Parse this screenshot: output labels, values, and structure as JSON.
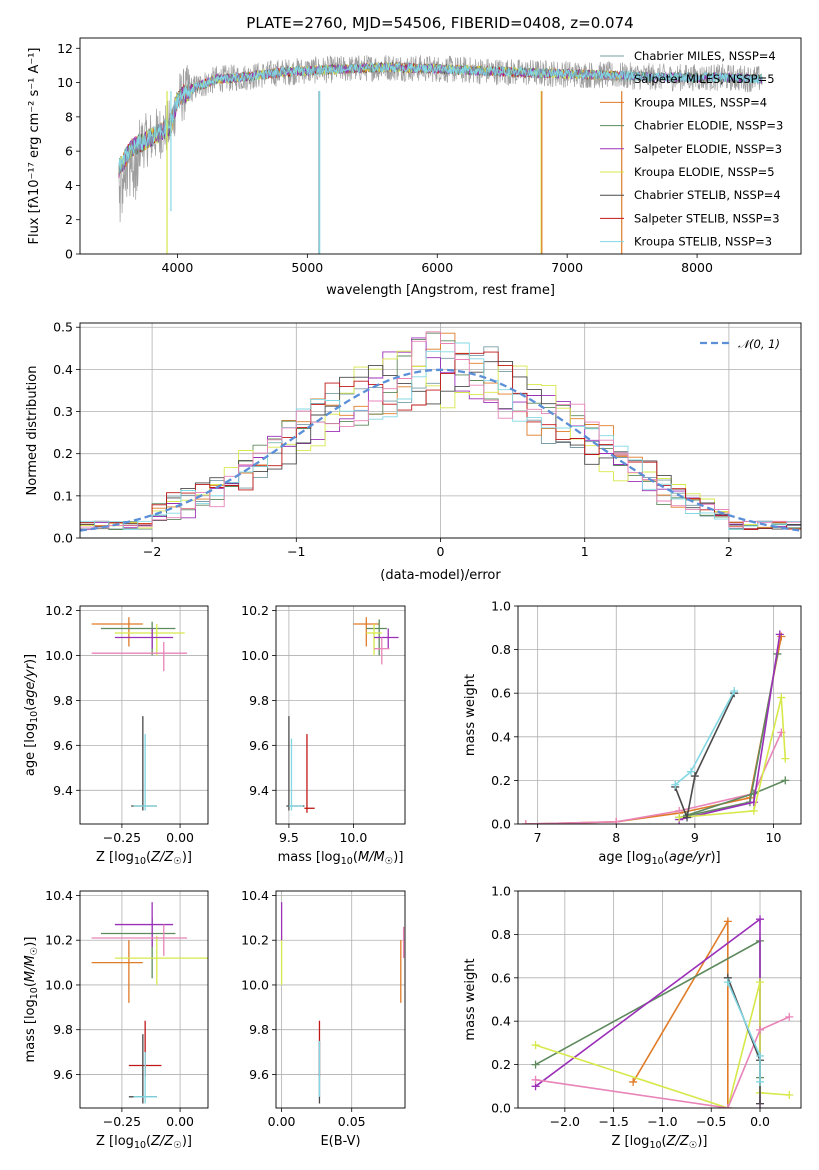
{
  "figure_title": "PLATE=2760, MJD=54506, FIBERID=0408, z=0.074",
  "colors": {
    "chabrier_miles": "#7a9ca6",
    "salpeter_miles": "#9e9e9e",
    "kroupa_miles": "#e07b28",
    "chabrier_elodie": "#5e8a5e",
    "salpeter_elodie": "#9b30b8",
    "kroupa_elodie": "#d7e84a",
    "chabrier_stelib": "#4a4a4a",
    "salpeter_stelib": "#c01818",
    "kroupa_stelib": "#82d8e4",
    "pink": "#e884b8",
    "gauss": "#5b8fd8"
  },
  "chart_data": [
    {
      "id": "spectrum",
      "type": "line",
      "xlabel": "wavelength [Angstrom, rest frame]",
      "ylabel": "Flux [fλ10⁻¹⁷ erg cm⁻² s⁻¹ A⁻¹]",
      "xlim": [
        3250,
        8800
      ],
      "ylim": [
        0,
        12.6
      ],
      "xticks": [
        4000,
        5000,
        6000,
        7000,
        8000
      ],
      "yticks": [
        0,
        2,
        4,
        6,
        8,
        10,
        12
      ],
      "grid": false,
      "legend_position": "top-right",
      "legend": [
        {
          "label": "Chabrier MILES, NSSP=4",
          "color_key": "chabrier_miles"
        },
        {
          "label": "Salpeter MILES, NSSP=5",
          "color_key": "salpeter_miles"
        },
        {
          "label": "Kroupa MILES, NSSP=4",
          "color_key": "kroupa_miles"
        },
        {
          "label": "Chabrier ELODIE, NSSP=3",
          "color_key": "chabrier_elodie"
        },
        {
          "label": "Salpeter ELODIE, NSSP=3",
          "color_key": "salpeter_elodie"
        },
        {
          "label": "Kroupa ELODIE, NSSP=5",
          "color_key": "kroupa_elodie"
        },
        {
          "label": "Chabrier STELIB, NSSP=4",
          "color_key": "chabrier_stelib"
        },
        {
          "label": "Salpeter STELIB, NSSP=3",
          "color_key": "salpeter_stelib"
        },
        {
          "label": "Kroupa STELIB, NSSP=3",
          "color_key": "kroupa_stelib"
        }
      ],
      "continuum": [
        [
          3550,
          5.0
        ],
        [
          3650,
          6.2
        ],
        [
          3800,
          6.8
        ],
        [
          3950,
          7.5
        ],
        [
          4000,
          9.0
        ],
        [
          4100,
          9.6
        ],
        [
          4300,
          10.2
        ],
        [
          4500,
          10.3
        ],
        [
          4800,
          10.6
        ],
        [
          5000,
          10.7
        ],
        [
          5300,
          10.8
        ],
        [
          5600,
          10.9
        ],
        [
          6000,
          10.8
        ],
        [
          6300,
          10.7
        ],
        [
          6600,
          10.6
        ],
        [
          7000,
          10.5
        ],
        [
          7400,
          10.4
        ],
        [
          7800,
          10.3
        ],
        [
          8200,
          10.3
        ],
        [
          8500,
          10.2
        ]
      ]
    },
    {
      "id": "residuals",
      "type": "histogram",
      "xlabel": "(data-model)/error",
      "ylabel": "Normed distribution",
      "xlim": [
        -2.5,
        2.5
      ],
      "ylim": [
        0,
        0.51
      ],
      "xticks": [
        -2,
        -1,
        0,
        1,
        2
      ],
      "yticks": [
        0.0,
        0.1,
        0.2,
        0.3,
        0.4,
        0.5
      ],
      "grid": true,
      "legend_position": "top-right",
      "gauss_label": "𝒩(0, 1)",
      "bin_width": 0.1
    },
    {
      "id": "age_vs_Z",
      "type": "errorbar",
      "xlabel": "Z [log10(Z/Z☉)]",
      "ylabel": "age [log10(age/yr)]",
      "xlim": [
        -0.43,
        0.12
      ],
      "ylim": [
        9.25,
        10.22
      ],
      "xticks": [
        -0.25,
        0.0
      ],
      "yticks": [
        9.4,
        9.6,
        9.8,
        10.0,
        10.2
      ],
      "grid": true,
      "points": [
        {
          "x": -0.22,
          "y": 10.14,
          "xerr": [
            0.16,
            0.06
          ],
          "yerr": [
            0.1,
            0.03
          ],
          "color_key": "kroupa_miles"
        },
        {
          "x": -0.12,
          "y": 10.12,
          "xerr": [
            0.22,
            0.1
          ],
          "yerr": [
            0.12,
            0.03
          ],
          "color_key": "chabrier_elodie"
        },
        {
          "x": -0.1,
          "y": 10.1,
          "xerr": [
            0.18,
            0.12
          ],
          "yerr": [
            0.1,
            0.04
          ],
          "color_key": "kroupa_elodie"
        },
        {
          "x": -0.12,
          "y": 10.08,
          "xerr": [
            0.16,
            0.09
          ],
          "yerr": [
            0.05,
            0.04
          ],
          "color_key": "salpeter_elodie"
        },
        {
          "x": -0.07,
          "y": 10.01,
          "xerr": [
            0.31,
            0.1
          ],
          "yerr": [
            0.08,
            0.05
          ],
          "color_key": "pink"
        },
        {
          "x": -0.16,
          "y": 9.33,
          "xerr": [
            0.05,
            0.06
          ],
          "yerr": [
            0.02,
            0.4
          ],
          "color_key": "chabrier_stelib"
        },
        {
          "x": -0.15,
          "y": 9.33,
          "xerr": [
            0.05,
            0.05
          ],
          "yerr": [
            0.02,
            0.32
          ],
          "color_key": "kroupa_stelib"
        }
      ]
    },
    {
      "id": "age_vs_mass",
      "type": "errorbar",
      "xlabel": "mass [log10(M/M☉)]",
      "ylabel": "",
      "xlim": [
        9.4,
        10.4
      ],
      "ylim": [
        9.25,
        10.22
      ],
      "xticks": [
        9.5,
        10.0
      ],
      "yticks": [
        9.4,
        9.6,
        9.8,
        10.0,
        10.2
      ],
      "grid": true,
      "points": [
        {
          "x": 10.1,
          "y": 10.14,
          "xerr": [
            0.1,
            0.1
          ],
          "yerr": [
            0.1,
            0.03
          ],
          "color_key": "kroupa_miles"
        },
        {
          "x": 10.2,
          "y": 10.12,
          "xerr": [
            0.1,
            0.06
          ],
          "yerr": [
            0.12,
            0.04
          ],
          "color_key": "chabrier_elodie"
        },
        {
          "x": 10.16,
          "y": 10.1,
          "xerr": [
            0.06,
            0.06
          ],
          "yerr": [
            0.1,
            0.04
          ],
          "color_key": "kroupa_elodie"
        },
        {
          "x": 10.27,
          "y": 10.08,
          "xerr": [
            0.11,
            0.08
          ],
          "yerr": [
            0.05,
            0.04
          ],
          "color_key": "salpeter_elodie"
        },
        {
          "x": 10.22,
          "y": 10.03,
          "xerr": [
            0.06,
            0.06
          ],
          "yerr": [
            0.07,
            0.05
          ],
          "color_key": "pink"
        },
        {
          "x": 9.5,
          "y": 9.33,
          "xerr": [
            0.02,
            0.12
          ],
          "yerr": [
            0.02,
            0.4
          ],
          "color_key": "chabrier_stelib"
        },
        {
          "x": 9.64,
          "y": 9.32,
          "xerr": [
            0.02,
            0.06
          ],
          "yerr": [
            0.02,
            0.33
          ],
          "color_key": "salpeter_stelib"
        },
        {
          "x": 9.52,
          "y": 9.33,
          "xerr": [
            0.02,
            0.09
          ],
          "yerr": [
            0.02,
            0.3
          ],
          "color_key": "kroupa_stelib"
        }
      ]
    },
    {
      "id": "weight_vs_age",
      "type": "line",
      "xlabel": "age [log10(age/yr)]",
      "ylabel": "mass weight",
      "xlim": [
        6.75,
        10.35
      ],
      "ylim": [
        0,
        1.0
      ],
      "xticks": [
        7,
        8,
        9,
        10
      ],
      "yticks": [
        0.0,
        0.2,
        0.4,
        0.6,
        0.8,
        1.0
      ],
      "grid": true,
      "series": [
        {
          "color_key": "kroupa_miles",
          "x": [
            6.85,
            8.0,
            8.8,
            9.7,
            10.1
          ],
          "y": [
            0.0,
            0.01,
            0.05,
            0.12,
            0.86
          ]
        },
        {
          "color_key": "pink",
          "x": [
            6.85,
            8.0,
            8.8,
            9.75,
            10.1
          ],
          "y": [
            0.0,
            0.01,
            0.06,
            0.14,
            0.42
          ]
        },
        {
          "color_key": "chabrier_elodie",
          "x": [
            8.9,
            9.75,
            10.15
          ],
          "y": [
            0.04,
            0.14,
            0.2
          ]
        },
        {
          "color_key": "chabrier_elodie",
          "x": [
            8.8,
            9.7,
            10.05
          ],
          "y": [
            0.03,
            0.1,
            0.78
          ]
        },
        {
          "color_key": "salpeter_elodie",
          "x": [
            8.8,
            9.75,
            10.08
          ],
          "y": [
            0.02,
            0.1,
            0.87
          ]
        },
        {
          "color_key": "kroupa_elodie",
          "x": [
            8.8,
            9.75,
            10.1,
            10.15
          ],
          "y": [
            0.03,
            0.06,
            0.58,
            0.3
          ]
        },
        {
          "color_key": "chabrier_stelib",
          "x": [
            8.75,
            8.9,
            9.0,
            9.5
          ],
          "y": [
            0.17,
            0.03,
            0.22,
            0.6
          ]
        },
        {
          "color_key": "kroupa_stelib",
          "x": [
            8.75,
            8.95,
            9.5
          ],
          "y": [
            0.18,
            0.24,
            0.61
          ]
        }
      ]
    },
    {
      "id": "mass_vs_Z",
      "type": "errorbar",
      "xlabel": "Z [log10(Z/Z☉)]",
      "ylabel": "mass [log10(M/M☉)]",
      "xlim": [
        -0.43,
        0.12
      ],
      "ylim": [
        9.45,
        10.42
      ],
      "xticks": [
        -0.25,
        0.0
      ],
      "yticks": [
        9.6,
        9.8,
        10.0,
        10.2,
        10.4
      ],
      "grid": true,
      "points": [
        {
          "x": -0.22,
          "y": 10.1,
          "xerr": [
            0.16,
            0.06
          ],
          "yerr": [
            0.18,
            0.1
          ],
          "color_key": "kroupa_miles"
        },
        {
          "x": -0.12,
          "y": 10.23,
          "xerr": [
            0.22,
            0.1
          ],
          "yerr": [
            0.2,
            0.07
          ],
          "color_key": "chabrier_elodie"
        },
        {
          "x": -0.1,
          "y": 10.12,
          "xerr": [
            0.18,
            0.22
          ],
          "yerr": [
            0.12,
            0.1
          ],
          "color_key": "kroupa_elodie"
        },
        {
          "x": -0.12,
          "y": 10.27,
          "xerr": [
            0.16,
            0.09
          ],
          "yerr": [
            0.1,
            0.1
          ],
          "color_key": "salpeter_elodie"
        },
        {
          "x": -0.07,
          "y": 10.21,
          "xerr": [
            0.31,
            0.1
          ],
          "yerr": [
            0.08,
            0.06
          ],
          "color_key": "pink"
        },
        {
          "x": -0.15,
          "y": 9.64,
          "xerr": [
            0.07,
            0.07
          ],
          "yerr": [
            0.05,
            0.2
          ],
          "color_key": "salpeter_stelib"
        },
        {
          "x": -0.16,
          "y": 9.5,
          "xerr": [
            0.06,
            0.06
          ],
          "yerr": [
            0.03,
            0.28
          ],
          "color_key": "chabrier_stelib"
        },
        {
          "x": -0.15,
          "y": 9.5,
          "xerr": [
            0.05,
            0.05
          ],
          "yerr": [
            0.03,
            0.2
          ],
          "color_key": "kroupa_stelib"
        }
      ]
    },
    {
      "id": "mass_vs_ebv",
      "type": "errorbar",
      "xlabel": "E(B-V)",
      "ylabel": "",
      "xlim": [
        -0.004,
        0.088
      ],
      "ylim": [
        9.45,
        10.42
      ],
      "xticks": [
        0.0,
        0.05
      ],
      "yticks": [
        9.6,
        9.8,
        10.0,
        10.2,
        10.4
      ],
      "grid": true,
      "points": [
        {
          "x": 0.0,
          "y": 10.1,
          "xerr": [
            0,
            0
          ],
          "yerr": [
            0.1,
            0.12
          ],
          "color_key": "kroupa_elodie"
        },
        {
          "x": 0.0,
          "y": 10.27,
          "xerr": [
            0,
            0
          ],
          "yerr": [
            0.07,
            0.1
          ],
          "color_key": "salpeter_elodie"
        },
        {
          "x": 0.085,
          "y": 10.1,
          "xerr": [
            0,
            0
          ],
          "yerr": [
            0.18,
            0.1
          ],
          "color_key": "kroupa_miles"
        },
        {
          "x": 0.087,
          "y": 10.2,
          "xerr": [
            0,
            0
          ],
          "yerr": [
            0.08,
            0.06
          ],
          "color_key": "pink"
        },
        {
          "x": 0.027,
          "y": 9.64,
          "xerr": [
            0,
            0
          ],
          "yerr": [
            0.05,
            0.2
          ],
          "color_key": "salpeter_stelib"
        },
        {
          "x": 0.027,
          "y": 9.55,
          "xerr": [
            0,
            0
          ],
          "yerr": [
            0.08,
            0.2
          ],
          "color_key": "chabrier_stelib"
        },
        {
          "x": 0.027,
          "y": 9.55,
          "xerr": [
            0,
            0
          ],
          "yerr": [
            0.05,
            0.2
          ],
          "color_key": "kroupa_stelib"
        }
      ]
    },
    {
      "id": "weight_vs_Z",
      "type": "line",
      "xlabel": "Z [log10(Z/Z☉)]",
      "ylabel": "mass weight",
      "xlim": [
        -2.48,
        0.42
      ],
      "ylim": [
        0,
        1.0
      ],
      "xticks": [
        -2.0,
        -1.5,
        -1.0,
        -0.5,
        0.0
      ],
      "yticks": [
        0.0,
        0.2,
        0.4,
        0.6,
        0.8,
        1.0
      ],
      "grid": true,
      "series": [
        {
          "color_key": "kroupa_miles",
          "x": [
            -1.3,
            -0.33,
            -0.33
          ],
          "y": [
            0.12,
            0.86,
            0.0
          ]
        },
        {
          "color_key": "chabrier_elodie",
          "x": [
            -2.3,
            0.0,
            0.0
          ],
          "y": [
            0.2,
            0.77,
            0.14
          ]
        },
        {
          "color_key": "salpeter_elodie",
          "x": [
            -2.3,
            0.0,
            0.0
          ],
          "y": [
            0.1,
            0.87,
            0.02
          ]
        },
        {
          "color_key": "kroupa_elodie",
          "x": [
            -2.3,
            -0.33,
            0.0,
            0.0,
            0.3
          ],
          "y": [
            0.29,
            0.0,
            0.58,
            0.07,
            0.06
          ]
        },
        {
          "color_key": "pink",
          "x": [
            -2.3,
            -0.33,
            0.0,
            0.3
          ],
          "y": [
            0.13,
            0.0,
            0.36,
            0.42
          ]
        },
        {
          "color_key": "chabrier_stelib",
          "x": [
            -0.33,
            0.0,
            0.0
          ],
          "y": [
            0.6,
            0.22,
            0.02
          ]
        },
        {
          "color_key": "kroupa_stelib",
          "x": [
            -0.33,
            0.0,
            0.0
          ],
          "y": [
            0.58,
            0.24,
            0.12
          ]
        }
      ]
    }
  ],
  "ticklabels": {
    "spectrum_x": [
      "4000",
      "5000",
      "6000",
      "7000",
      "8000"
    ],
    "spectrum_y": [
      "0",
      "2",
      "4",
      "6",
      "8",
      "10",
      "12"
    ],
    "hist_x": [
      "−2",
      "−1",
      "0",
      "1",
      "2"
    ],
    "hist_y": [
      "0.0",
      "0.1",
      "0.2",
      "0.3",
      "0.4",
      "0.5"
    ],
    "agez_x": [
      "−0.25",
      "0.00"
    ],
    "age_y": [
      "9.4",
      "9.6",
      "9.8",
      "10.0",
      "10.2"
    ],
    "mass_x": [
      "9.5",
      "10.0"
    ],
    "wage_x": [
      "7",
      "8",
      "9",
      "10"
    ],
    "w_y": [
      "0.0",
      "0.2",
      "0.4",
      "0.6",
      "0.8",
      "1.0"
    ],
    "mass_y": [
      "9.6",
      "9.8",
      "10.0",
      "10.2",
      "10.4"
    ],
    "ebv_x": [
      "0.00",
      "0.05"
    ],
    "wz_x": [
      "−2.0",
      "−1.5",
      "−1.0",
      "−0.5",
      "0.0"
    ]
  }
}
